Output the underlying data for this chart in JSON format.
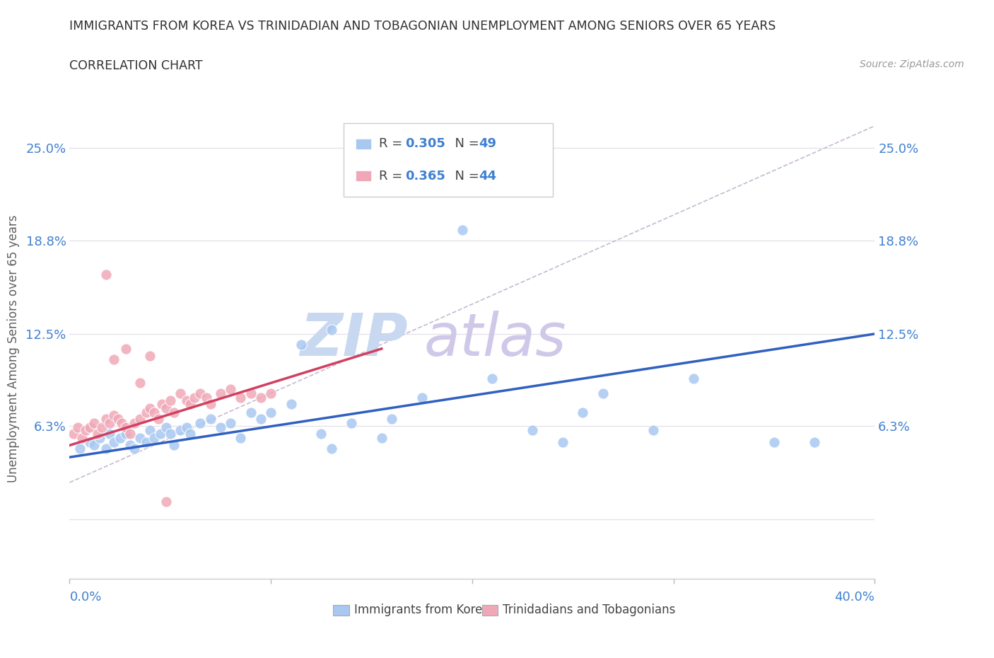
{
  "title_line1": "IMMIGRANTS FROM KOREA VS TRINIDADIAN AND TOBAGONIAN UNEMPLOYMENT AMONG SENIORS OVER 65 YEARS",
  "title_line2": "CORRELATION CHART",
  "source_text": "Source: ZipAtlas.com",
  "ylabel_label": "Unemployment Among Seniors over 65 years",
  "watermark_zip": "ZIP",
  "watermark_atlas": "atlas",
  "legend_korea_r": "0.305",
  "legend_korea_n": "49",
  "legend_trini_r": "0.365",
  "legend_trini_n": "44",
  "xlim": [
    0.0,
    0.4
  ],
  "ylim": [
    -0.04,
    0.27
  ],
  "yticks": [
    0.0,
    0.063,
    0.125,
    0.188,
    0.25
  ],
  "ytick_labels": [
    "",
    "6.3%",
    "12.5%",
    "18.8%",
    "25.0%"
  ],
  "korea_x": [
    0.005,
    0.01,
    0.012,
    0.015,
    0.018,
    0.02,
    0.022,
    0.025,
    0.028,
    0.03,
    0.032,
    0.035,
    0.038,
    0.04,
    0.042,
    0.045,
    0.048,
    0.05,
    0.052,
    0.055,
    0.058,
    0.06,
    0.065,
    0.07,
    0.075,
    0.08,
    0.085,
    0.09,
    0.095,
    0.1,
    0.11,
    0.115,
    0.125,
    0.13,
    0.14,
    0.155,
    0.16,
    0.175,
    0.195,
    0.21,
    0.23,
    0.245,
    0.265,
    0.29,
    0.31,
    0.35,
    0.37,
    0.255,
    0.13
  ],
  "korea_y": [
    0.048,
    0.052,
    0.05,
    0.055,
    0.048,
    0.058,
    0.052,
    0.055,
    0.058,
    0.05,
    0.048,
    0.055,
    0.052,
    0.06,
    0.055,
    0.058,
    0.062,
    0.058,
    0.05,
    0.06,
    0.062,
    0.058,
    0.065,
    0.068,
    0.062,
    0.065,
    0.055,
    0.072,
    0.068,
    0.072,
    0.078,
    0.118,
    0.058,
    0.048,
    0.065,
    0.055,
    0.068,
    0.082,
    0.195,
    0.095,
    0.06,
    0.052,
    0.085,
    0.06,
    0.095,
    0.052,
    0.052,
    0.072,
    0.128
  ],
  "trini_x": [
    0.002,
    0.004,
    0.006,
    0.008,
    0.01,
    0.012,
    0.014,
    0.016,
    0.018,
    0.02,
    0.022,
    0.024,
    0.026,
    0.028,
    0.03,
    0.032,
    0.035,
    0.038,
    0.04,
    0.042,
    0.044,
    0.046,
    0.048,
    0.05,
    0.052,
    0.055,
    0.058,
    0.06,
    0.062,
    0.065,
    0.068,
    0.07,
    0.075,
    0.08,
    0.085,
    0.09,
    0.095,
    0.1,
    0.022,
    0.035,
    0.028,
    0.04,
    0.018,
    0.048
  ],
  "trini_y": [
    0.058,
    0.062,
    0.055,
    0.06,
    0.062,
    0.065,
    0.058,
    0.062,
    0.068,
    0.065,
    0.07,
    0.068,
    0.065,
    0.062,
    0.058,
    0.065,
    0.068,
    0.072,
    0.075,
    0.072,
    0.068,
    0.078,
    0.075,
    0.08,
    0.072,
    0.085,
    0.08,
    0.078,
    0.082,
    0.085,
    0.082,
    0.078,
    0.085,
    0.088,
    0.082,
    0.085,
    0.082,
    0.085,
    0.108,
    0.092,
    0.115,
    0.11,
    0.165,
    0.012
  ],
  "korea_line_x0": 0.0,
  "korea_line_x1": 0.4,
  "korea_line_y0": 0.042,
  "korea_line_y1": 0.125,
  "trini_line_x0": 0.0,
  "trini_line_x1": 0.155,
  "trini_line_y0": 0.05,
  "trini_line_y1": 0.115,
  "dashed_line_x0": 0.0,
  "dashed_line_x1": 0.4,
  "dashed_line_y0": 0.025,
  "dashed_line_y1": 0.265,
  "korea_scatter_color": "#a8c8f0",
  "trini_scatter_color": "#f0a8b8",
  "korea_line_color": "#3060c0",
  "trini_line_color": "#d04060",
  "dashed_line_color": "#c8b8d0",
  "title_color": "#303030",
  "axis_tick_color": "#4080d0",
  "ylabel_color": "#606060",
  "watermark_zip_color": "#c8d8f0",
  "watermark_atlas_color": "#d0c8e8",
  "bg_color": "#ffffff",
  "grid_color": "#e0e0e8"
}
